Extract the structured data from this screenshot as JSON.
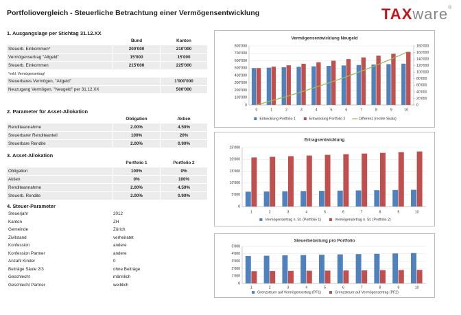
{
  "header": {
    "title": "Portfoliovergleich - Steuerliche Betrachtung einer Vermögensentwicklung",
    "logo": {
      "bold": "TAX",
      "rest": "ware",
      "mark": "®"
    }
  },
  "sections": [
    {
      "title": "1. Ausgangslage per Stichtag 31.12.XX",
      "columns": [
        "Bund",
        "Kanton"
      ],
      "rows": [
        [
          "Steuerb. Einkommen*",
          "200'000",
          "210'000"
        ],
        [
          "Vermögensertrag \"Altgeld\"",
          "15'000",
          "15'000"
        ],
        [
          "Steuerb. Einkommen",
          "215'000",
          "225'000"
        ]
      ],
      "note": "*exkl. Vermögensertrag!",
      "extra_rows": [
        [
          "Steuerbares Vermögen, \"Altgeld\"",
          "1'000'000"
        ],
        [
          "Neuzugang Vermögen, \"Neugeld\" per 31.12.XX",
          "500'000"
        ]
      ]
    },
    {
      "title": "2. Parameter für Asset-Allokation",
      "columns": [
        "Obligation",
        "Aktien"
      ],
      "rows": [
        [
          "Renditeannahme",
          "2.00%",
          "4.50%"
        ],
        [
          "Steuerbarer Renditeanteil",
          "100%",
          "20%"
        ],
        [
          "Steuerbare Rendite",
          "2.00%",
          "0.90%"
        ]
      ]
    },
    {
      "title": "3. Asset-Allokation",
      "columns": [
        "Portfolio 1",
        "Portfolio 2"
      ],
      "rows": [
        [
          "Obligation",
          "100%",
          "0%"
        ],
        [
          "Aktien",
          "0%",
          "100%"
        ],
        [
          "Renditeannahme",
          "2.00%",
          "4.50%"
        ],
        [
          "Steuerb. Rendite",
          "2.00%",
          "0.90%"
        ]
      ]
    },
    {
      "title": "4. Steuer-Parameter",
      "rows": [
        [
          "Steuerjahr",
          "2012"
        ],
        [
          "Kanton",
          "ZH"
        ],
        [
          "Gemeinde",
          "Zürich"
        ],
        [
          "Zivilstand",
          "verheiratet"
        ],
        [
          "Konfession",
          "andere"
        ],
        [
          "Konfession Partner",
          "andere"
        ],
        [
          "Anzahl Kinder",
          "0"
        ],
        [
          "Beiträge Säule 2/3",
          "ohne Beiträge"
        ],
        [
          "Geschlecht",
          "männlich"
        ],
        [
          "Geschlecht Partner",
          "weiblich"
        ]
      ]
    }
  ],
  "chart_data": [
    {
      "type": "bar",
      "title": "Vermögensentwicklung Neugeld",
      "grid": true,
      "categories": [
        "0",
        "1",
        "2",
        "3",
        "4",
        "5",
        "6",
        "7",
        "8",
        "9",
        "10"
      ],
      "ylim": [
        0,
        800000
      ],
      "yticks": [
        0,
        {
          "value": 100000,
          "label": "100'000"
        },
        {
          "value": 200000,
          "label": "200'000"
        },
        {
          "value": 300000,
          "label": "300'000"
        },
        {
          "value": 400000,
          "label": "400'000"
        },
        {
          "value": 500000,
          "label": "500'000"
        },
        {
          "value": 600000,
          "label": "600'000"
        },
        {
          "value": 700000,
          "label": "700'000"
        },
        {
          "value": 800000,
          "label": "800'000"
        }
      ],
      "y2lim": [
        0,
        180000
      ],
      "y2ticks": [
        0,
        {
          "value": 20000,
          "label": "20'000"
        },
        {
          "value": 40000,
          "label": "40'000"
        },
        {
          "value": 60000,
          "label": "60'000"
        },
        {
          "value": 80000,
          "label": "80'000"
        },
        {
          "value": 100000,
          "label": "100'000"
        },
        {
          "value": 120000,
          "label": "120'000"
        },
        {
          "value": 140000,
          "label": "140'000"
        },
        {
          "value": 160000,
          "label": "160'000"
        },
        {
          "value": 180000,
          "label": "180'000"
        }
      ],
      "series": [
        {
          "name": "Entwicklung Portfolio 1",
          "color": "#4f81bd",
          "values": [
            500000,
            506000,
            512000,
            518000,
            524000,
            530000,
            536000,
            542000,
            548000,
            554000,
            560000
          ]
        },
        {
          "name": "Entwicklung Portfolio 2",
          "color": "#c0504d",
          "values": [
            500000,
            519000,
            538000,
            558000,
            579000,
            600000,
            622000,
            645000,
            669000,
            694000,
            720000
          ]
        },
        {
          "name": "Differenz (rechte Skala)",
          "color": "#9bbb59",
          "type": "line",
          "axis": "y2",
          "values": [
            0,
            13000,
            26000,
            40000,
            55000,
            70000,
            86000,
            103000,
            121000,
            140000,
            160000
          ]
        }
      ]
    },
    {
      "type": "bar",
      "title": "Ertragsentwicklung",
      "grid": true,
      "categories": [
        "1",
        "2",
        "3",
        "4",
        "5",
        "6",
        "7",
        "8",
        "9",
        "10"
      ],
      "ylim": [
        0,
        25000
      ],
      "yticks": [
        0,
        {
          "value": 5000,
          "label": "5'000"
        },
        {
          "value": 10000,
          "label": "10'000"
        },
        {
          "value": 15000,
          "label": "15'000"
        },
        {
          "value": 20000,
          "label": "20'000"
        },
        {
          "value": 25000,
          "label": "25'000"
        }
      ],
      "series": [
        {
          "name": "Vermögensertrag n. St. (Portfolio 1)",
          "color": "#4f81bd",
          "values": [
            6300,
            6390,
            6480,
            6570,
            6660,
            6750,
            6840,
            6930,
            7020,
            7110
          ]
        },
        {
          "name": "Vermögensertrag n. St. (Portfolio 2)",
          "color": "#c0504d",
          "values": [
            20800,
            21070,
            21340,
            21620,
            21900,
            22180,
            22470,
            22760,
            23050,
            23350
          ]
        }
      ]
    },
    {
      "type": "bar",
      "title": "Steuerbelastung pro Portfolio",
      "grid": true,
      "categories": [
        "1",
        "2",
        "3",
        "4",
        "5",
        "6",
        "7",
        "8",
        "9",
        "10"
      ],
      "ylim": [
        0,
        5000
      ],
      "yticks": [
        0,
        {
          "value": 1000,
          "label": "1'000"
        },
        {
          "value": 2000,
          "label": "2'000"
        },
        {
          "value": 3000,
          "label": "3'000"
        },
        {
          "value": 4000,
          "label": "4'000"
        },
        {
          "value": 5000,
          "label": "5'000"
        }
      ],
      "series": [
        {
          "name": "Grenzsteuer auf Vermögensertrag (PF1)",
          "color": "#4f81bd",
          "values": [
            3700,
            3740,
            3790,
            3830,
            3870,
            3920,
            3960,
            4000,
            4050,
            4100
          ]
        },
        {
          "name": "Grenzsteuer auf Vermögensertrag (PF2)",
          "color": "#c0504d",
          "values": [
            1650,
            1670,
            1690,
            1710,
            1730,
            1750,
            1770,
            1790,
            1810,
            1830
          ]
        }
      ]
    }
  ]
}
